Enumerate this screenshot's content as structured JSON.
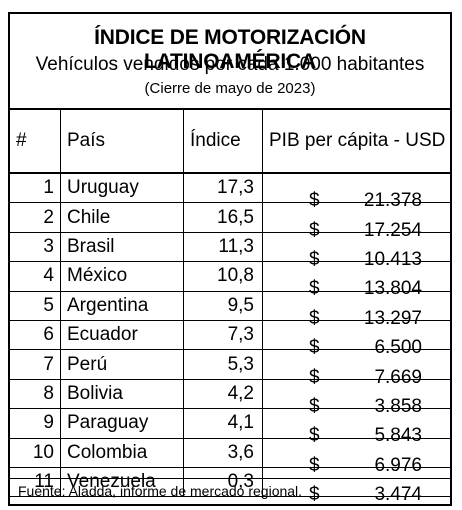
{
  "header": {
    "title": "ÍNDICE DE MOTORIZACIÓN LATINOAMÉRICA",
    "subtitle": "Vehículos vendidos por cada 1.000 habitantes",
    "note": "(Cierre de mayo de 2023)"
  },
  "columns": [
    "#",
    "País",
    "Índice",
    "PIB per cápita - USD"
  ],
  "currency_symbol": "$",
  "rows": [
    {
      "rank": "1",
      "country": "Uruguay",
      "index": "17,3",
      "gdp": "21.378"
    },
    {
      "rank": "2",
      "country": "Chile",
      "index": "16,5",
      "gdp": "17.254"
    },
    {
      "rank": "3",
      "country": "Brasil",
      "index": "11,3",
      "gdp": "10.413"
    },
    {
      "rank": "4",
      "country": "México",
      "index": "10,8",
      "gdp": "13.804"
    },
    {
      "rank": "5",
      "country": "Argentina",
      "index": "9,5",
      "gdp": "13.297"
    },
    {
      "rank": "6",
      "country": "Ecuador",
      "index": "7,3",
      "gdp": "6.500"
    },
    {
      "rank": "7",
      "country": "Perú",
      "index": "5,3",
      "gdp": "7.669"
    },
    {
      "rank": "8",
      "country": "Bolivia",
      "index": "4,2",
      "gdp": "3.858"
    },
    {
      "rank": "9",
      "country": "Paraguay",
      "index": "4,1",
      "gdp": "5.843"
    },
    {
      "rank": "10",
      "country": "Colombia",
      "index": "3,6",
      "gdp": "6.976"
    },
    {
      "rank": "11",
      "country": "Venezuela",
      "index": "0,3",
      "gdp": "3.474"
    }
  ],
  "footer": "Fuente: Aladda, informe de mercado regional."
}
